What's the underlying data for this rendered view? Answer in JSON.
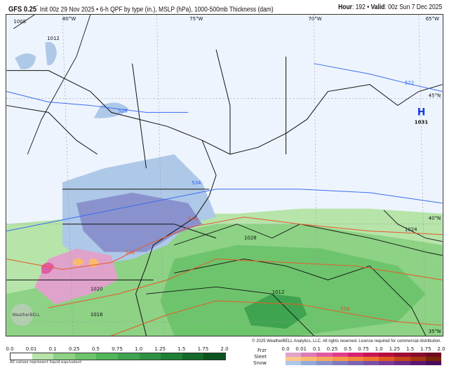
{
  "header": {
    "model": "GFS 0.25",
    "degree": "°",
    "description": "Init 00z 29 Nov 2025 • 6-h QPF by type (in.), MSLP (hPa), 1000-500mb Thickness (dam)",
    "hour_label": "Hour",
    "hour": ": 192 • ",
    "valid_label": "Valid",
    "valid": ": 00z Sun 7 Dec 2025"
  },
  "map": {
    "longitudes": [
      "80°W",
      "75°W",
      "70°W",
      "65°W"
    ],
    "latitudes": [
      "45°N",
      "40°N",
      "35°N"
    ],
    "high": {
      "letter": "H",
      "pressure": "1031"
    },
    "isobar_labels": [
      "1008",
      "1012",
      "1028",
      "1020",
      "1024",
      "1016",
      "1012"
    ],
    "thickness_blue": [
      "528",
      "534",
      "522"
    ],
    "thickness_red": [
      "540",
      "546",
      "558"
    ],
    "colors": {
      "land_bg": "#eef4fd",
      "isobar": "#111111",
      "thickness_cold": "#3a6cf0",
      "thickness_warm": "#e8582a"
    }
  },
  "copyright": "© 2025 WeatherBELL Analytics, LLC. All rights reserved. License required for commercial distribution.",
  "logo_text": "WeatherBELL",
  "legend_rain": {
    "ticks": [
      "0.0",
      "0.01",
      "0.1",
      "0.25",
      "0.5",
      "0.75",
      "1.0",
      "1.25",
      "1.5",
      "1.75",
      "2.0"
    ],
    "colors": [
      "#ffffff",
      "#b6e4a9",
      "#8dd285",
      "#6ec46d",
      "#52b65b",
      "#3fa44f",
      "#2f9243",
      "#1e7f36",
      "#136a2a",
      "#0a551f"
    ],
    "note": "All values represent liquid equivalent"
  },
  "legend_types": {
    "ticks": [
      "0.0",
      "0.01",
      "0.1",
      "0.25",
      "0.5",
      "0.75",
      "1.0",
      "1.25",
      "1.5",
      "1.75",
      "2.0"
    ],
    "rows": [
      {
        "label": "Frzr",
        "colors": [
          "#dfa3cb",
          "#de7bb8",
          "#e05ba3",
          "#e43c8c",
          "#d82370",
          "#c91553",
          "#b40e41",
          "#9d0b36",
          "#880a2b",
          "#700a20"
        ]
      },
      {
        "label": "Sleet",
        "colors": [
          "#fcc68d",
          "#fbb96d",
          "#f9a95c",
          "#f69a48",
          "#f2883a",
          "#ee7530",
          "#de5b21",
          "#c64617",
          "#a6360f",
          "#7a240a"
        ]
      },
      {
        "label": "Snow",
        "colors": [
          "#aec8e8",
          "#93aadb",
          "#8a92cd",
          "#8179c0",
          "#7a64b4",
          "#7a4fa6",
          "#7a3b97",
          "#6d2985",
          "#5b1870",
          "#4a0b5a"
        ]
      }
    ]
  }
}
